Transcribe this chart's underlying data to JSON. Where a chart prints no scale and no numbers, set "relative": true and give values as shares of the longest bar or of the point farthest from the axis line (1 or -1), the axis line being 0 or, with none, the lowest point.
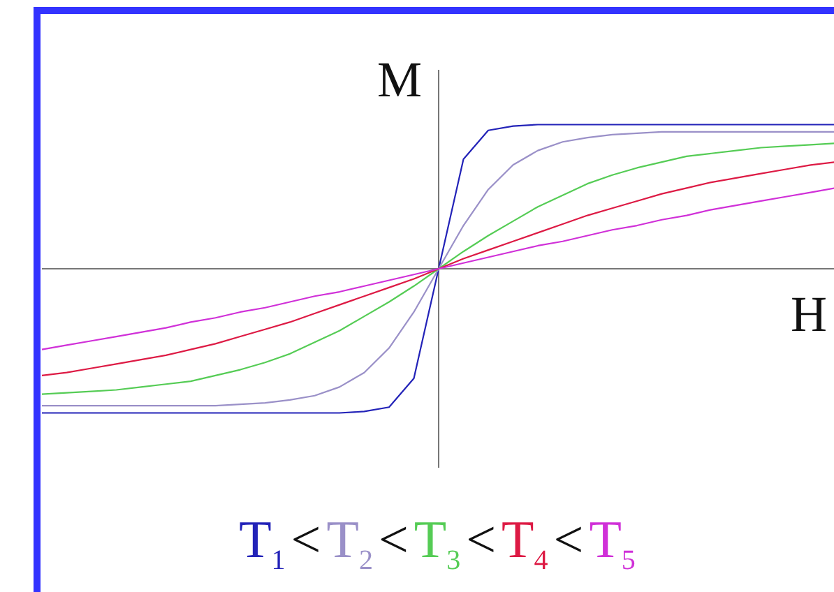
{
  "chart_data": {
    "type": "line",
    "relative": true,
    "xlabel": "H",
    "ylabel": "M",
    "annotations": [
      "<"
    ],
    "categories": [
      null,
      null,
      null,
      null,
      null,
      null,
      null,
      null,
      null,
      null,
      null,
      null,
      null,
      null,
      null,
      null,
      null,
      null,
      null,
      null,
      null,
      null,
      null,
      null,
      null,
      null,
      null,
      null,
      null,
      null,
      null,
      null,
      null
    ],
    "series": [
      {
        "name": "T$_{1}$",
        "color": "#2323b8",
        "values": [
          -1,
          -1,
          -1,
          -1,
          -1,
          -1,
          -1,
          -1,
          -1,
          -1,
          -1,
          -1,
          -1,
          -0.99,
          -0.96,
          -0.76,
          0,
          0.76,
          0.96,
          0.99,
          1,
          1,
          1,
          1,
          1,
          1,
          1,
          1,
          1,
          1,
          1,
          1,
          1
        ]
      },
      {
        "name": "T$_{2}$",
        "color": "#9a90c8",
        "values": [
          -0.95,
          -0.95,
          -0.95,
          -0.95,
          -0.95,
          -0.95,
          -0.95,
          -0.95,
          -0.94,
          -0.93,
          -0.91,
          -0.88,
          -0.82,
          -0.72,
          -0.55,
          -0.3,
          0,
          0.3,
          0.55,
          0.72,
          0.82,
          0.88,
          0.91,
          0.93,
          0.94,
          0.95,
          0.95,
          0.95,
          0.95,
          0.95,
          0.95,
          0.95,
          0.95
        ]
      },
      {
        "name": "T$_{3}$",
        "color": "#55cc55",
        "values": [
          -0.87,
          -0.86,
          -0.85,
          -0.84,
          -0.82,
          -0.8,
          -0.78,
          -0.74,
          -0.7,
          -0.65,
          -0.59,
          -0.51,
          -0.43,
          -0.33,
          -0.23,
          -0.12,
          0,
          0.12,
          0.23,
          0.33,
          0.43,
          0.51,
          0.59,
          0.65,
          0.7,
          0.74,
          0.78,
          0.8,
          0.82,
          0.84,
          0.85,
          0.86,
          0.87
        ]
      },
      {
        "name": "T$_{4}$",
        "color": "#dd1a44",
        "values": [
          -0.74,
          -0.72,
          -0.69,
          -0.66,
          -0.63,
          -0.6,
          -0.56,
          -0.52,
          -0.47,
          -0.42,
          -0.37,
          -0.31,
          -0.25,
          -0.19,
          -0.13,
          -0.07,
          0,
          0.07,
          0.13,
          0.19,
          0.25,
          0.31,
          0.37,
          0.42,
          0.47,
          0.52,
          0.56,
          0.6,
          0.63,
          0.66,
          0.69,
          0.72,
          0.74
        ]
      },
      {
        "name": "T$_{5}$",
        "color": "#d030d8",
        "values": [
          -0.56,
          -0.53,
          -0.5,
          -0.47,
          -0.44,
          -0.41,
          -0.37,
          -0.34,
          -0.3,
          -0.27,
          -0.23,
          -0.19,
          -0.16,
          -0.12,
          -0.08,
          -0.04,
          0,
          0.04,
          0.08,
          0.12,
          0.16,
          0.19,
          0.23,
          0.27,
          0.3,
          0.34,
          0.37,
          0.41,
          0.44,
          0.47,
          0.5,
          0.53,
          0.56
        ]
      }
    ]
  }
}
